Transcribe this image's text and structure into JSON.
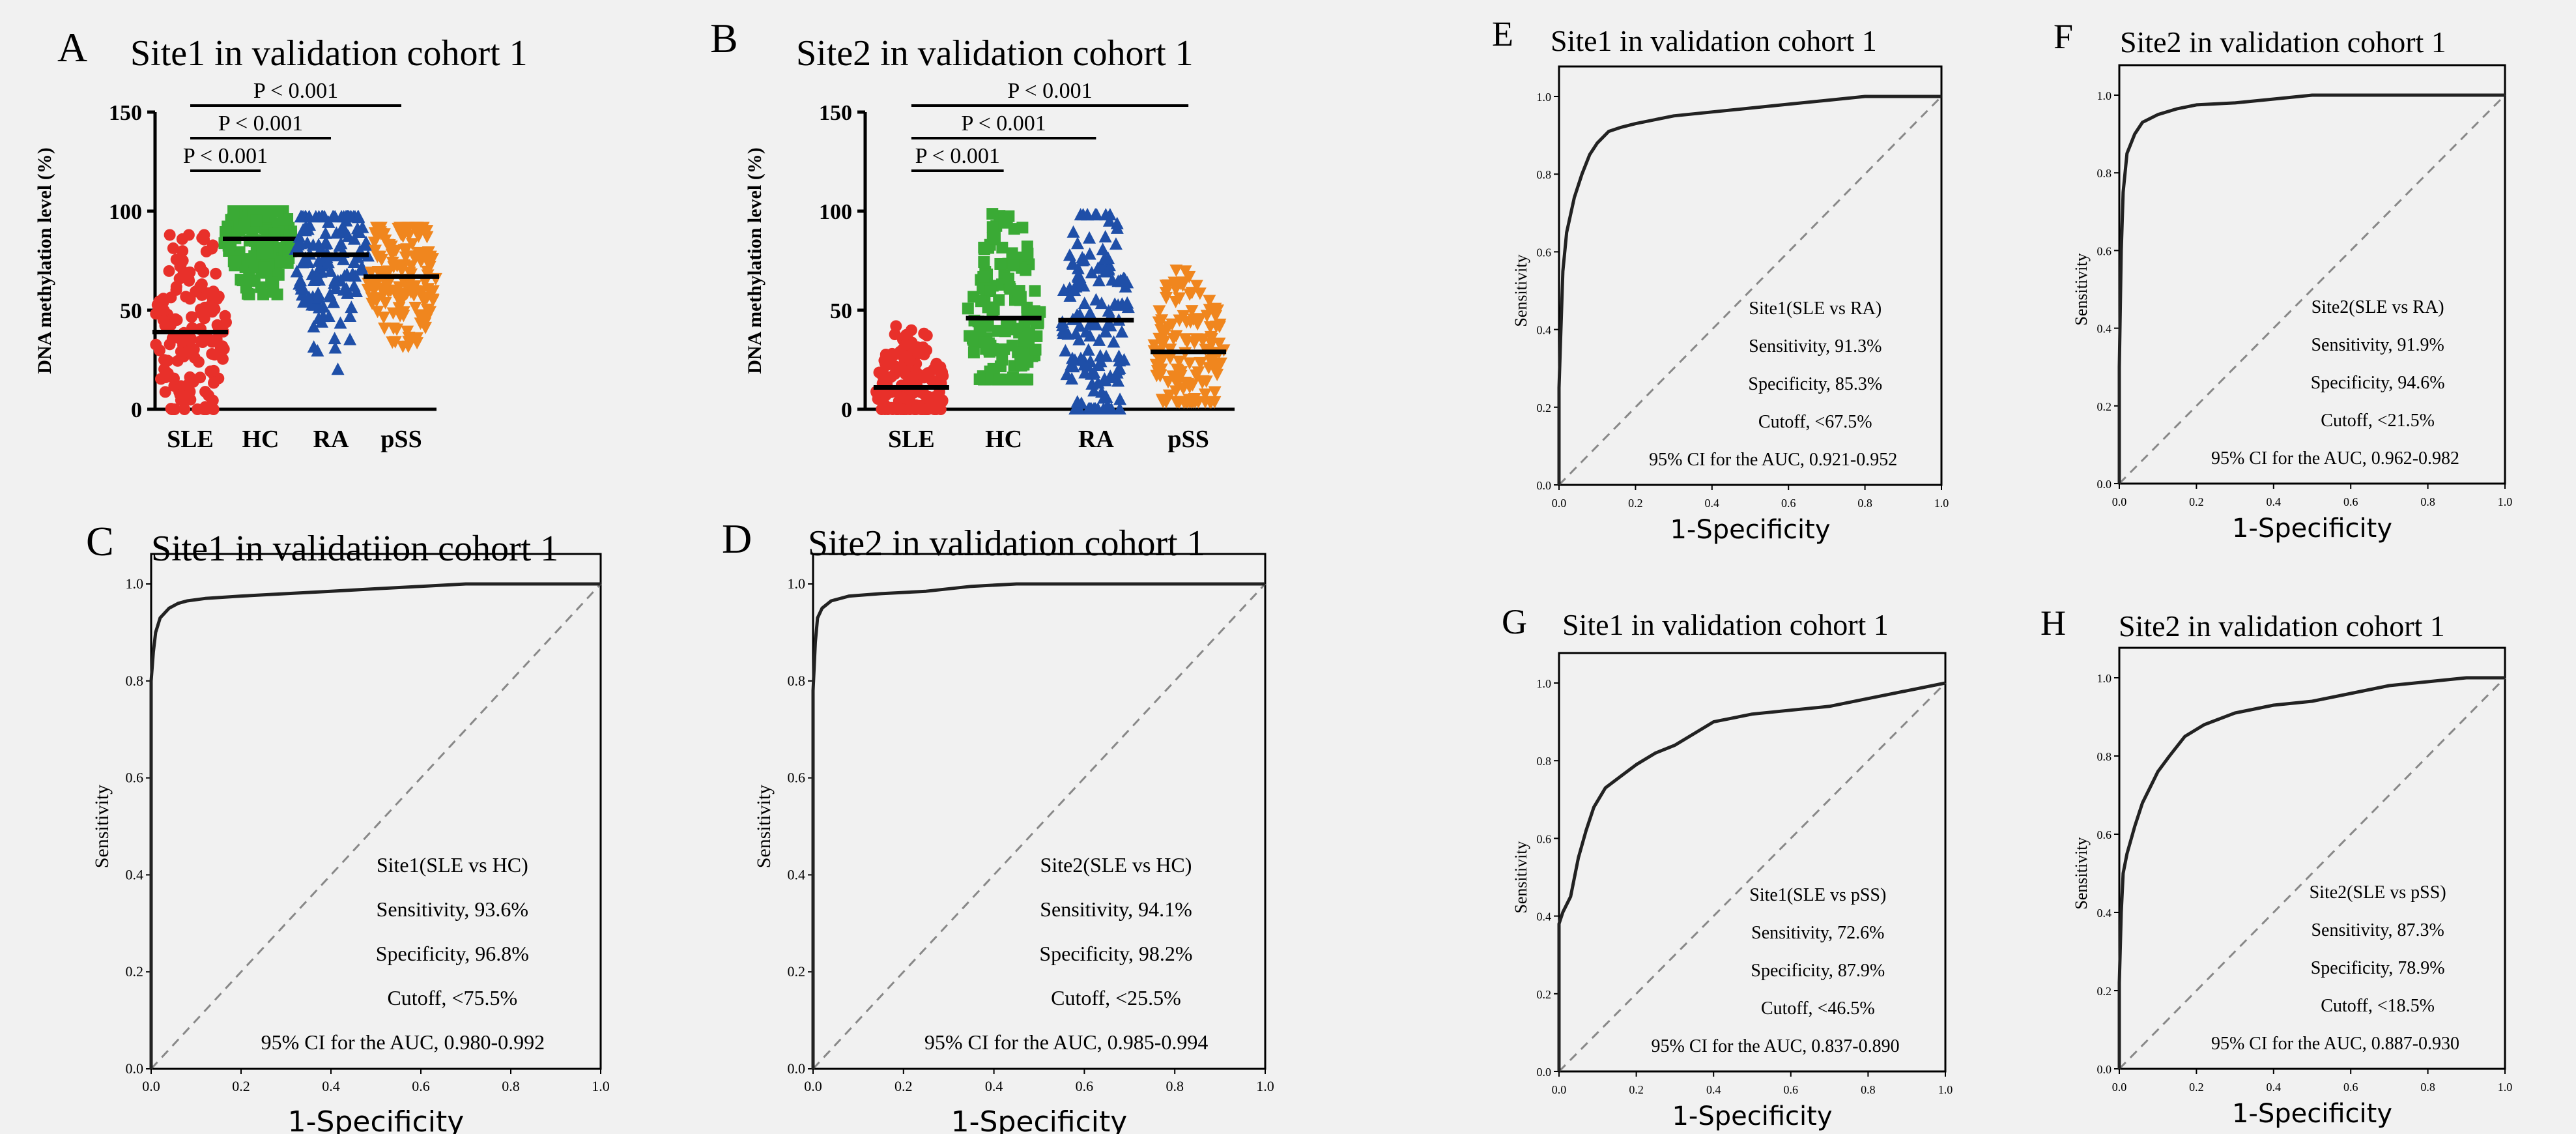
{
  "colors": {
    "background": "#f1f1f1",
    "ink": "#000000",
    "roc_curve": "#222222",
    "diagonal": "#888888",
    "SLE": "#e8302a",
    "HC": "#3aaa35",
    "RA": "#1f4fa8",
    "pSS": "#f0861e"
  },
  "chart_data": [
    {
      "panel_letter": "A",
      "type": "scatter",
      "title": "Site1 in validation cohort 1",
      "xlabel": "",
      "ylabel": "DNA methylation level (%)",
      "categories": [
        "SLE",
        "HC",
        "RA",
        "pSS"
      ],
      "marker_shapes": [
        "circle",
        "square",
        "triangle",
        "inverted-triangle"
      ],
      "yticks": [
        "0",
        "50",
        "100",
        "150"
      ],
      "ylim": [
        0,
        150
      ],
      "means": [
        39,
        86,
        78,
        67
      ],
      "ranges": [
        [
          0,
          88
        ],
        [
          58,
          100
        ],
        [
          20,
          97
        ],
        [
          32,
          92
        ]
      ],
      "significance": [
        {
          "from": "SLE",
          "to": "HC",
          "label": "P < 0.001"
        },
        {
          "from": "SLE",
          "to": "RA",
          "label": "P < 0.001"
        },
        {
          "from": "SLE",
          "to": "pSS",
          "label": "P < 0.001"
        }
      ]
    },
    {
      "panel_letter": "B",
      "type": "scatter",
      "title": "Site2 in validation cohort 1",
      "xlabel": "",
      "ylabel": "DNA methylation level (%)",
      "categories": [
        "SLE",
        "HC",
        "RA",
        "pSS"
      ],
      "marker_shapes": [
        "circle",
        "square",
        "triangle",
        "inverted-triangle"
      ],
      "yticks": [
        "0",
        "50",
        "100",
        "150"
      ],
      "ylim": [
        0,
        150
      ],
      "means": [
        11,
        46,
        45,
        29
      ],
      "ranges": [
        [
          0,
          42
        ],
        [
          15,
          100
        ],
        [
          0,
          98
        ],
        [
          4,
          80
        ]
      ],
      "significance": [
        {
          "from": "SLE",
          "to": "HC",
          "label": "P < 0.001"
        },
        {
          "from": "SLE",
          "to": "RA",
          "label": "P < 0.001"
        },
        {
          "from": "SLE",
          "to": "pSS",
          "label": "P < 0.001"
        }
      ]
    },
    {
      "panel_letter": "C",
      "type": "line",
      "title": "Site1 in validatiion cohort 1",
      "xlabel": "1-Specificity",
      "ylabel": "Sensitivity",
      "xticks": [
        "0.0",
        "0.2",
        "0.4",
        "0.6",
        "0.8",
        "1.0"
      ],
      "yticks": [
        "0.0",
        "0.2",
        "0.4",
        "0.6",
        "0.8",
        "1.0"
      ],
      "xlim": [
        0,
        1
      ],
      "ylim": [
        0,
        1
      ],
      "diagonal": true,
      "x": [
        0,
        0,
        0.005,
        0.01,
        0.02,
        0.04,
        0.06,
        0.08,
        0.12,
        0.2,
        0.3,
        0.4,
        0.5,
        0.6,
        0.7,
        0.8,
        0.9,
        1.0
      ],
      "y": [
        0,
        0.8,
        0.86,
        0.9,
        0.93,
        0.95,
        0.96,
        0.965,
        0.97,
        0.975,
        0.98,
        0.985,
        0.99,
        0.995,
        1.0,
        1.0,
        1.0,
        1.0
      ],
      "annotation": [
        "Site1(SLE vs HC)",
        "Sensitivity, 93.6%",
        "Specificity, 96.8%",
        "Cutoff, <75.5%",
        "95% CI for the AUC, 0.980-0.992"
      ]
    },
    {
      "panel_letter": "D",
      "type": "line",
      "title": "Site2 in validation cohort 1",
      "xlabel": "1-Specificity",
      "ylabel": "Sensitivity",
      "xticks": [
        "0.0",
        "0.2",
        "0.4",
        "0.6",
        "0.8",
        "1.0"
      ],
      "yticks": [
        "0.0",
        "0.2",
        "0.4",
        "0.6",
        "0.8",
        "1.0"
      ],
      "xlim": [
        0,
        1
      ],
      "ylim": [
        0,
        1
      ],
      "diagonal": true,
      "x": [
        0,
        0,
        0.005,
        0.01,
        0.02,
        0.04,
        0.08,
        0.15,
        0.25,
        0.35,
        0.45,
        0.55,
        0.7,
        0.85,
        1.0
      ],
      "y": [
        0,
        0.78,
        0.88,
        0.93,
        0.95,
        0.965,
        0.975,
        0.98,
        0.985,
        0.995,
        1.0,
        1.0,
        1.0,
        1.0,
        1.0
      ],
      "annotation": [
        "Site2(SLE vs HC)",
        "Sensitivity, 94.1%",
        "Specificity, 98.2%",
        "Cutoff, <25.5%",
        "95% CI for the AUC, 0.985-0.994"
      ]
    },
    {
      "panel_letter": "E",
      "type": "line",
      "title": "Site1 in validation cohort 1",
      "xlabel": "1-Specificity",
      "ylabel": "Sensitivity",
      "xticks": [
        "0.0",
        "0.2",
        "0.4",
        "0.6",
        "0.8",
        "1.0"
      ],
      "yticks": [
        "0.0",
        "0.2",
        "0.4",
        "0.6",
        "0.8",
        "1.0"
      ],
      "xlim": [
        0,
        1
      ],
      "ylim": [
        0,
        1
      ],
      "diagonal": true,
      "x": [
        0,
        0,
        0.005,
        0.01,
        0.02,
        0.04,
        0.06,
        0.08,
        0.1,
        0.13,
        0.16,
        0.2,
        0.3,
        0.4,
        0.5,
        0.6,
        0.7,
        0.8,
        0.9,
        1.0
      ],
      "y": [
        0,
        0.25,
        0.4,
        0.55,
        0.65,
        0.74,
        0.8,
        0.85,
        0.88,
        0.91,
        0.92,
        0.93,
        0.95,
        0.96,
        0.97,
        0.98,
        0.99,
        1.0,
        1.0,
        1.0
      ],
      "annotation": [
        "Site1(SLE vs RA)",
        "Sensitivity, 91.3%",
        "Specificity, 85.3%",
        "Cutoff, <67.5%",
        "95% CI for the AUC, 0.921-0.952"
      ]
    },
    {
      "panel_letter": "F",
      "type": "line",
      "title": "Site2 in validation cohort 1",
      "xlabel": "1-Specificity",
      "ylabel": "Sensitivity",
      "xticks": [
        "0.0",
        "0.2",
        "0.4",
        "0.6",
        "0.8",
        "1.0"
      ],
      "yticks": [
        "0.0",
        "0.2",
        "0.4",
        "0.6",
        "0.8",
        "1.0"
      ],
      "xlim": [
        0,
        1
      ],
      "ylim": [
        0,
        1
      ],
      "diagonal": true,
      "x": [
        0,
        0,
        0.005,
        0.01,
        0.02,
        0.04,
        0.06,
        0.1,
        0.15,
        0.2,
        0.3,
        0.4,
        0.5,
        0.6,
        0.8,
        1.0
      ],
      "y": [
        0,
        0.3,
        0.6,
        0.75,
        0.85,
        0.9,
        0.93,
        0.95,
        0.965,
        0.975,
        0.98,
        0.99,
        1.0,
        1.0,
        1.0,
        1.0
      ],
      "annotation": [
        "Site2(SLE vs RA)",
        "Sensitivity, 91.9%",
        "Specificity, 94.6%",
        "Cutoff, <21.5%",
        "95% CI for the AUC, 0.962-0.982"
      ]
    },
    {
      "panel_letter": "G",
      "type": "line",
      "title": "Site1 in validation cohort 1",
      "xlabel": "1-Specificity",
      "ylabel": "Sensitivity",
      "xticks": [
        "0.0",
        "0.2",
        "0.4",
        "0.6",
        "0.8",
        "1.0"
      ],
      "yticks": [
        "0.0",
        "0.2",
        "0.4",
        "0.6",
        "0.8",
        "1.0"
      ],
      "xlim": [
        0,
        1
      ],
      "ylim": [
        0,
        1
      ],
      "diagonal": true,
      "x": [
        0,
        0,
        0.01,
        0.03,
        0.05,
        0.07,
        0.09,
        0.12,
        0.16,
        0.2,
        0.25,
        0.3,
        0.35,
        0.4,
        0.5,
        0.6,
        0.7,
        0.8,
        0.9,
        1.0
      ],
      "y": [
        0,
        0.38,
        0.41,
        0.45,
        0.55,
        0.62,
        0.68,
        0.73,
        0.76,
        0.79,
        0.82,
        0.84,
        0.87,
        0.9,
        0.92,
        0.93,
        0.94,
        0.96,
        0.98,
        1.0
      ],
      "annotation": [
        "Site1(SLE vs pSS)",
        "Sensitivity, 72.6%",
        "Specificity, 87.9%",
        "Cutoff, <46.5%",
        "95% CI for the AUC, 0.837-0.890"
      ]
    },
    {
      "panel_letter": "H",
      "type": "line",
      "title": "Site2 in validation cohort 1",
      "xlabel": "1-Specificity",
      "ylabel": "Sensitivity",
      "xticks": [
        "0.0",
        "0.2",
        "0.4",
        "0.6",
        "0.8",
        "1.0"
      ],
      "yticks": [
        "0.0",
        "0.2",
        "0.4",
        "0.6",
        "0.8",
        "1.0"
      ],
      "xlim": [
        0,
        1
      ],
      "ylim": [
        0,
        1
      ],
      "diagonal": true,
      "x": [
        0,
        0,
        0.005,
        0.01,
        0.02,
        0.04,
        0.06,
        0.08,
        0.1,
        0.13,
        0.17,
        0.22,
        0.3,
        0.4,
        0.5,
        0.6,
        0.7,
        0.8,
        0.9,
        1.0
      ],
      "y": [
        0,
        0.22,
        0.4,
        0.5,
        0.55,
        0.62,
        0.68,
        0.72,
        0.76,
        0.8,
        0.85,
        0.88,
        0.91,
        0.93,
        0.94,
        0.96,
        0.98,
        0.99,
        1.0,
        1.0
      ],
      "annotation": [
        "Site2(SLE vs pSS)",
        "Sensitivity, 87.3%",
        "Specificity, 78.9%",
        "Cutoff, <18.5%",
        "95% CI for the AUC, 0.887-0.930"
      ]
    }
  ]
}
